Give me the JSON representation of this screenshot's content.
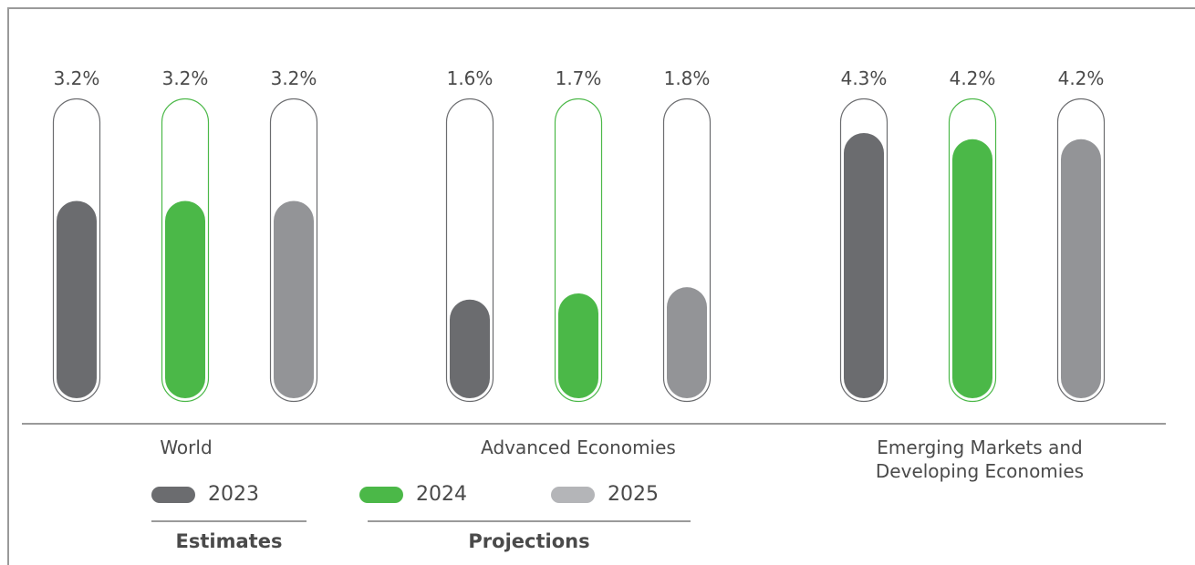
{
  "chart_data": {
    "type": "bar",
    "categories": [
      "World",
      "Advanced Economies",
      "Emerging Markets and\nDeveloping Economies"
    ],
    "series": [
      {
        "name": "2023",
        "values": [
          3.2,
          1.6,
          4.3
        ],
        "labels": [
          "3.2%",
          "1.6%",
          "4.3%"
        ],
        "color": "#6b6c6f"
      },
      {
        "name": "2024",
        "values": [
          3.2,
          1.7,
          4.2
        ],
        "labels": [
          "3.2%",
          "1.7%",
          "4.2%"
        ],
        "color": "#4bb848"
      },
      {
        "name": "2025",
        "values": [
          3.2,
          1.8,
          4.2
        ],
        "labels": [
          "3.2%",
          "1.8%",
          "4.2%"
        ],
        "color": "#939497"
      }
    ],
    "highlight_outline_color": "#4bb848",
    "neutral_outline_color": "#6b6c6f",
    "legend_colors": [
      "#6b6c6f",
      "#4bb848",
      "#b4b5b8"
    ],
    "legend": [
      {
        "label": "2023",
        "group": "Estimates"
      },
      {
        "label": "2024",
        "group": "Projections"
      },
      {
        "label": "2025",
        "group": "Projections"
      }
    ],
    "period_labels": {
      "estimates": "Estimates",
      "projections": "Projections"
    },
    "title": "",
    "xlabel": "",
    "ylabel": "",
    "ylim": [
      0,
      4.3
    ],
    "grid": false,
    "legend_position": "bottom-left"
  }
}
